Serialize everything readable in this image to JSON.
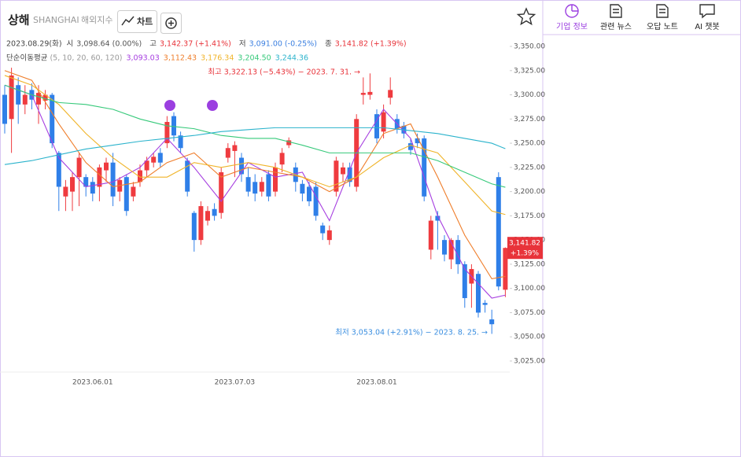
{
  "header": {
    "name": "상해",
    "code": "SHANGHAI",
    "market": "해외지수",
    "chart_button": "차트"
  },
  "tabs": [
    "기업 정보",
    "관련 뉴스",
    "오답 노트",
    "AI 챗봇"
  ],
  "chart_data": {
    "type": "candlestick",
    "info": {
      "date": "2023.08.29(화)",
      "items": [
        {
          "label": "시",
          "value": "3,098.64 (0.00%)",
          "color": "#555555"
        },
        {
          "label": "고",
          "value": "3,142.37 (+1.41%)",
          "color": "#e8333a"
        },
        {
          "label": "저",
          "value": "3,091.00 (-0.25%)",
          "color": "#3a7fe0"
        },
        {
          "label": "종",
          "value": "3,141.82 (+1.39%)",
          "color": "#e8333a"
        }
      ]
    },
    "ma_legend": {
      "title": "단순이동평균",
      "periods": "(5, 10, 20, 60, 120)"
    },
    "categories": [
      null,
      null,
      null,
      null,
      null,
      null,
      null,
      null,
      null,
      null,
      null,
      null,
      null,
      "2023.06.01",
      null,
      null,
      null,
      null,
      null,
      null,
      null,
      null,
      null,
      null,
      null,
      null,
      null,
      null,
      null,
      null,
      null,
      null,
      null,
      null,
      "2023.07.03",
      null,
      null,
      null,
      null,
      null,
      null,
      null,
      null,
      null,
      null,
      null,
      null,
      null,
      null,
      null,
      null,
      null,
      null,
      null,
      null,
      "2023.08.01",
      null,
      null,
      null,
      null,
      null,
      null,
      null,
      null,
      null,
      null,
      null,
      null,
      null,
      null,
      null,
      null,
      null,
      null,
      null
    ],
    "open": [
      3300,
      3275,
      3310,
      3290,
      3305,
      3290,
      3294,
      3300,
      3240,
      3195,
      3200,
      3215,
      3215,
      3210,
      3205,
      3222,
      3230,
      3200,
      3215,
      3195,
      3210,
      3222,
      3230,
      3240,
      3250,
      3278,
      3258,
      3232,
      3178,
      3150,
      3170,
      3182,
      3178,
      3235,
      3242,
      3235,
      3215,
      3210,
      3200,
      3218,
      3200,
      3228,
      3248,
      3225,
      3208,
      3205,
      3205,
      3165,
      3150,
      3200,
      3218,
      3225,
      3205,
      3300,
      3300,
      3280,
      3262,
      3297,
      3275,
      3268,
      3250,
      3255,
      3255,
      3140,
      3175,
      3150,
      3130,
      3150,
      3125,
      3105,
      3115,
      3085,
      3068,
      3215,
      3098.64
    ],
    "high": [
      3310,
      3328,
      3318,
      3310,
      3312,
      3310,
      3305,
      3302,
      3242,
      3212,
      3220,
      3240,
      3218,
      3215,
      3228,
      3235,
      3240,
      3215,
      3218,
      3210,
      3228,
      3236,
      3240,
      3245,
      3278,
      3282,
      3262,
      3235,
      3180,
      3190,
      3185,
      3188,
      3225,
      3250,
      3252,
      3240,
      3225,
      3218,
      3215,
      3222,
      3230,
      3245,
      3256,
      3230,
      3212,
      3210,
      3210,
      3168,
      3165,
      3236,
      3230,
      3230,
      3280,
      3318,
      3322.13,
      3285,
      3290,
      3318,
      3280,
      3272,
      3255,
      3260,
      3258,
      3175,
      3180,
      3155,
      3152,
      3155,
      3128,
      3125,
      3118,
      3088,
      3078,
      3220,
      3142.37
    ],
    "low": [
      3260,
      3240,
      3270,
      3280,
      3285,
      3270,
      3285,
      3245,
      3180,
      3180,
      3180,
      3185,
      3195,
      3190,
      3190,
      3210,
      3185,
      3190,
      3175,
      3190,
      3205,
      3215,
      3225,
      3225,
      3245,
      3252,
      3240,
      3195,
      3138,
      3145,
      3165,
      3170,
      3172,
      3230,
      3215,
      3210,
      3195,
      3190,
      3195,
      3190,
      3195,
      3220,
      3245,
      3200,
      3190,
      3185,
      3170,
      3150,
      3145,
      3195,
      3210,
      3205,
      3200,
      3290,
      3295,
      3250,
      3255,
      3290,
      3260,
      3255,
      3238,
      3245,
      3190,
      3130,
      3140,
      3128,
      3120,
      3115,
      3080,
      3080,
      3070,
      3075,
      3053.04,
      3098,
      3091
    ],
    "close": [
      3270,
      3320,
      3290,
      3300,
      3295,
      3302,
      3300,
      3250,
      3205,
      3205,
      3215,
      3235,
      3205,
      3198,
      3225,
      3230,
      3195,
      3212,
      3180,
      3205,
      3222,
      3232,
      3236,
      3230,
      3272,
      3258,
      3245,
      3200,
      3150,
      3185,
      3180,
      3175,
      3220,
      3245,
      3248,
      3218,
      3200,
      3198,
      3210,
      3195,
      3225,
      3240,
      3253,
      3210,
      3198,
      3190,
      3175,
      3157,
      3160,
      3232,
      3225,
      3210,
      3275,
      3302,
      3303,
      3255,
      3282,
      3305,
      3265,
      3260,
      3243,
      3250,
      3195,
      3170,
      3170,
      3135,
      3150,
      3125,
      3090,
      3120,
      3075,
      3083,
      3063,
      3102,
      3141.82
    ],
    "up_color": "#ef3b3f",
    "down_color": "#2f7fe8",
    "ma": [
      {
        "color": "#a63ee0",
        "legend_value": "3,093.03",
        "x": [
          0,
          4,
          8,
          12,
          16,
          20,
          24,
          28,
          32,
          36,
          40,
          44,
          48,
          52,
          56,
          60,
          64,
          68,
          72,
          74
        ],
        "values": [
          3310,
          3300,
          3235,
          3205,
          3210,
          3225,
          3255,
          3225,
          3190,
          3230,
          3215,
          3220,
          3170,
          3240,
          3285,
          3255,
          3175,
          3120,
          3090,
          3093.03
        ]
      },
      {
        "color": "#ef7d2a",
        "legend_value": "3,112.43",
        "x": [
          0,
          4,
          8,
          12,
          16,
          20,
          24,
          28,
          32,
          36,
          40,
          44,
          48,
          52,
          56,
          60,
          64,
          68,
          72,
          74
        ],
        "values": [
          3325,
          3315,
          3270,
          3230,
          3205,
          3210,
          3230,
          3240,
          3215,
          3225,
          3220,
          3215,
          3200,
          3215,
          3260,
          3270,
          3215,
          3155,
          3110,
          3112.43
        ]
      },
      {
        "color": "#f0b429",
        "legend_value": "3,176.34",
        "x": [
          0,
          4,
          8,
          12,
          16,
          20,
          24,
          28,
          32,
          36,
          40,
          44,
          48,
          52,
          56,
          60,
          64,
          68,
          72,
          74
        ],
        "values": [
          3320,
          3310,
          3290,
          3260,
          3235,
          3215,
          3215,
          3230,
          3225,
          3230,
          3225,
          3215,
          3205,
          3215,
          3235,
          3248,
          3240,
          3210,
          3180,
          3176.34
        ]
      },
      {
        "color": "#36c97a",
        "legend_value": "3,204.50",
        "x": [
          0,
          4,
          8,
          12,
          16,
          20,
          24,
          28,
          32,
          36,
          40,
          44,
          48,
          52,
          56,
          60,
          64,
          68,
          72,
          74
        ],
        "values": [
          3310,
          3300,
          3292,
          3290,
          3285,
          3275,
          3268,
          3265,
          3258,
          3255,
          3255,
          3248,
          3240,
          3240,
          3240,
          3240,
          3232,
          3220,
          3208,
          3204.5
        ]
      },
      {
        "color": "#2bb3cc",
        "legend_value": "3,244.36",
        "x": [
          0,
          4,
          8,
          12,
          16,
          20,
          24,
          28,
          32,
          36,
          40,
          44,
          48,
          52,
          56,
          60,
          64,
          68,
          72,
          74
        ],
        "values": [
          3228,
          3232,
          3238,
          3244,
          3248,
          3252,
          3255,
          3258,
          3262,
          3264,
          3266,
          3266,
          3266,
          3266,
          3266,
          3263,
          3260,
          3255,
          3250,
          3244.36
        ]
      }
    ],
    "ylim": [
      3013.6,
      3362.2
    ],
    "yticks": [
      {
        "value": 3025,
        "label": "3,025.00"
      },
      {
        "value": 3050,
        "label": "3,050.00"
      },
      {
        "value": 3075,
        "label": "3,075.00"
      },
      {
        "value": 3100,
        "label": "3,100.00"
      },
      {
        "value": 3125,
        "label": "3,125.00"
      },
      {
        "value": 3150,
        "label": "3,150.00"
      },
      {
        "value": 3175,
        "label": "3,175.00"
      },
      {
        "value": 3200,
        "label": "3,200.00"
      },
      {
        "value": 3225,
        "label": "3,225.00"
      },
      {
        "value": 3250,
        "label": "3,250.00"
      },
      {
        "value": 3275,
        "label": "3,275.00"
      },
      {
        "value": 3300,
        "label": "3,300.00"
      },
      {
        "value": 3325,
        "label": "3,325.00"
      },
      {
        "value": 3350,
        "label": "3,350.00"
      }
    ],
    "annotations": [
      {
        "text": "최고 3,322.13 (−5.43%) − 2023. 7. 31. →",
        "color": "#e8333a"
      },
      {
        "text": "최저 3,053.04 (+2.91%) − 2023. 8. 25. →",
        "color": "#3a8ee0"
      }
    ],
    "last_price": {
      "price": "3,141.82",
      "change": "+1.39%"
    }
  }
}
